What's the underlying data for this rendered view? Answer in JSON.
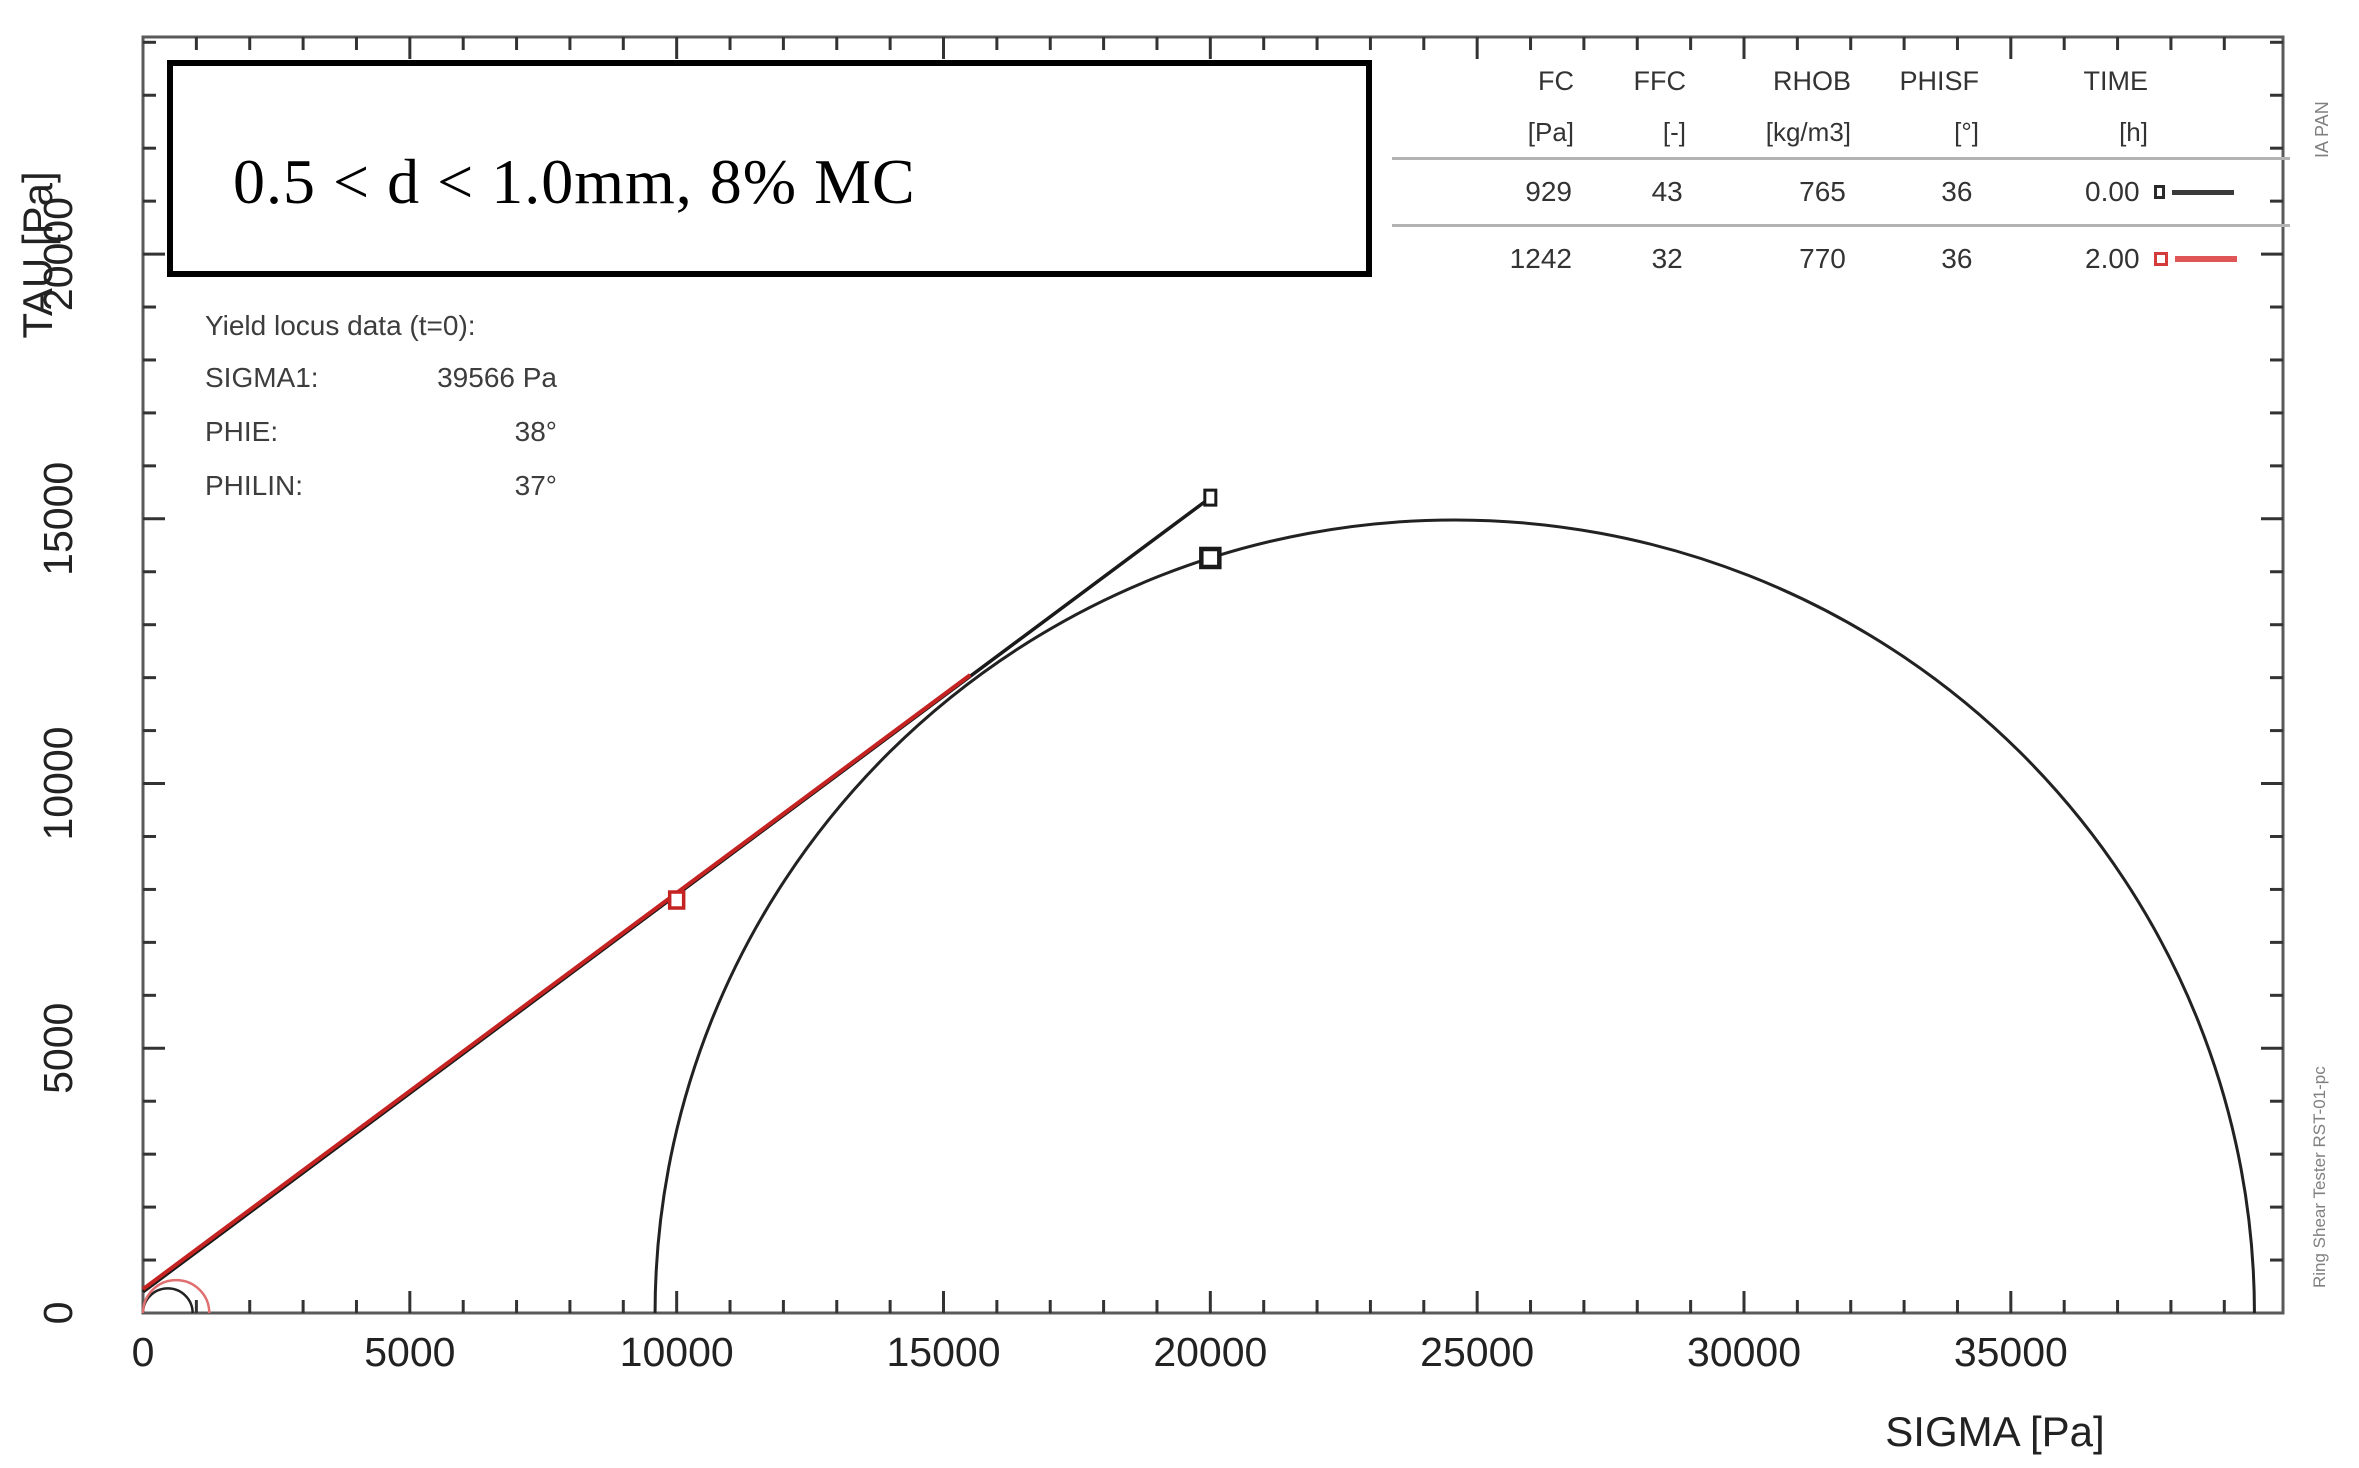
{
  "title_box": {
    "text": "0.5 < d < 1.0mm, 8% MC"
  },
  "table": {
    "headers": {
      "fc": "FC",
      "ffc": "FFC",
      "rhob": "RHOB",
      "phisf": "PHISF",
      "time": "TIME"
    },
    "units": {
      "fc": "[Pa]",
      "ffc": "[-]",
      "rhob": "[kg/m3]",
      "phisf": "[°]",
      "time": "[h]"
    },
    "rows": [
      {
        "fc": "929",
        "ffc": "43",
        "rhob": "765",
        "phisf": "36",
        "time": "0.00"
      },
      {
        "fc": "1242",
        "ffc": "32",
        "rhob": "770",
        "phisf": "36",
        "time": "2.00"
      }
    ]
  },
  "yield_locus_info": {
    "heading": "Yield locus data (t=0):",
    "rows": [
      {
        "label": "SIGMA1:",
        "value": "39566 Pa"
      },
      {
        "label": "PHIE:",
        "value": "38°"
      },
      {
        "label": "PHILIN:",
        "value": "37°"
      }
    ]
  },
  "side_labels": {
    "top_right": "IA PAN",
    "bottom_right": "Ring Shear Tester RST-01-pc"
  },
  "colors": {
    "series_t0": "#1a1a1a",
    "series_t2": "#c52222",
    "series_t2_light": "#e07070",
    "axis": "#5a5a5a",
    "tick": "#333333",
    "separator": "#b3b3b3"
  },
  "chart_data": {
    "type": "line",
    "title": "0.5 < d < 1.0mm, 8% MC",
    "xlabel": "SIGMA [Pa]",
    "ylabel": "TAU [Pa]",
    "xlim": [
      0,
      40100
    ],
    "ylim": [
      0,
      24100
    ],
    "grid": false,
    "x_major_ticks": [
      0,
      5000,
      10000,
      15000,
      20000,
      25000,
      30000,
      35000
    ],
    "x_tick_labels": [
      "0",
      "5000",
      "10000",
      "15000",
      "20000",
      "25000",
      "30000",
      "35000"
    ],
    "x_minor_step": 1000,
    "x_minor_max": 40000,
    "y_major_ticks": [
      0,
      5000,
      10000,
      15000,
      20000
    ],
    "y_tick_labels": [
      "0",
      "5000",
      "10000",
      "15000",
      "20000"
    ],
    "y_minor_step": 1000,
    "y_minor_max": 24000,
    "series": [
      {
        "name": "mohr-circle-consolidation-t0",
        "type": "semicircle",
        "center": 24580,
        "radius": 14985,
        "color": "#222222",
        "width": 3
      },
      {
        "name": "fc-circle-t0",
        "type": "semicircle",
        "center": 465,
        "radius": 465,
        "color": "#222222",
        "width": 2.5
      },
      {
        "name": "fc-circle-t2",
        "type": "semicircle",
        "center": 621,
        "radius": 621,
        "color": "#e07070",
        "width": 2.5
      },
      {
        "name": "yield-locus-t0",
        "type": "line",
        "points": [
          [
            0,
            400
          ],
          [
            20000,
            15400
          ]
        ],
        "color": "#1a1a1a",
        "width": 3.5
      },
      {
        "name": "yield-locus-t2",
        "type": "line",
        "points": [
          [
            0,
            450
          ],
          [
            15500,
            12050
          ]
        ],
        "color": "#c52222",
        "width": 4
      }
    ],
    "markers": [
      {
        "name": "preshear-point-t0",
        "sigma": 20000,
        "tau": 15400,
        "w": 11,
        "h": 15,
        "color": "#1a1a1a",
        "stroke": 3
      },
      {
        "name": "tangent-point-t0",
        "sigma": 20000,
        "tau": 14260,
        "w": 18,
        "h": 18,
        "color": "#1a1a1a",
        "stroke": 4.5
      },
      {
        "name": "shear-point-t2",
        "sigma": 10000,
        "tau": 7800,
        "w": 14,
        "h": 16,
        "color": "#c52222",
        "stroke": 3.5
      }
    ]
  }
}
